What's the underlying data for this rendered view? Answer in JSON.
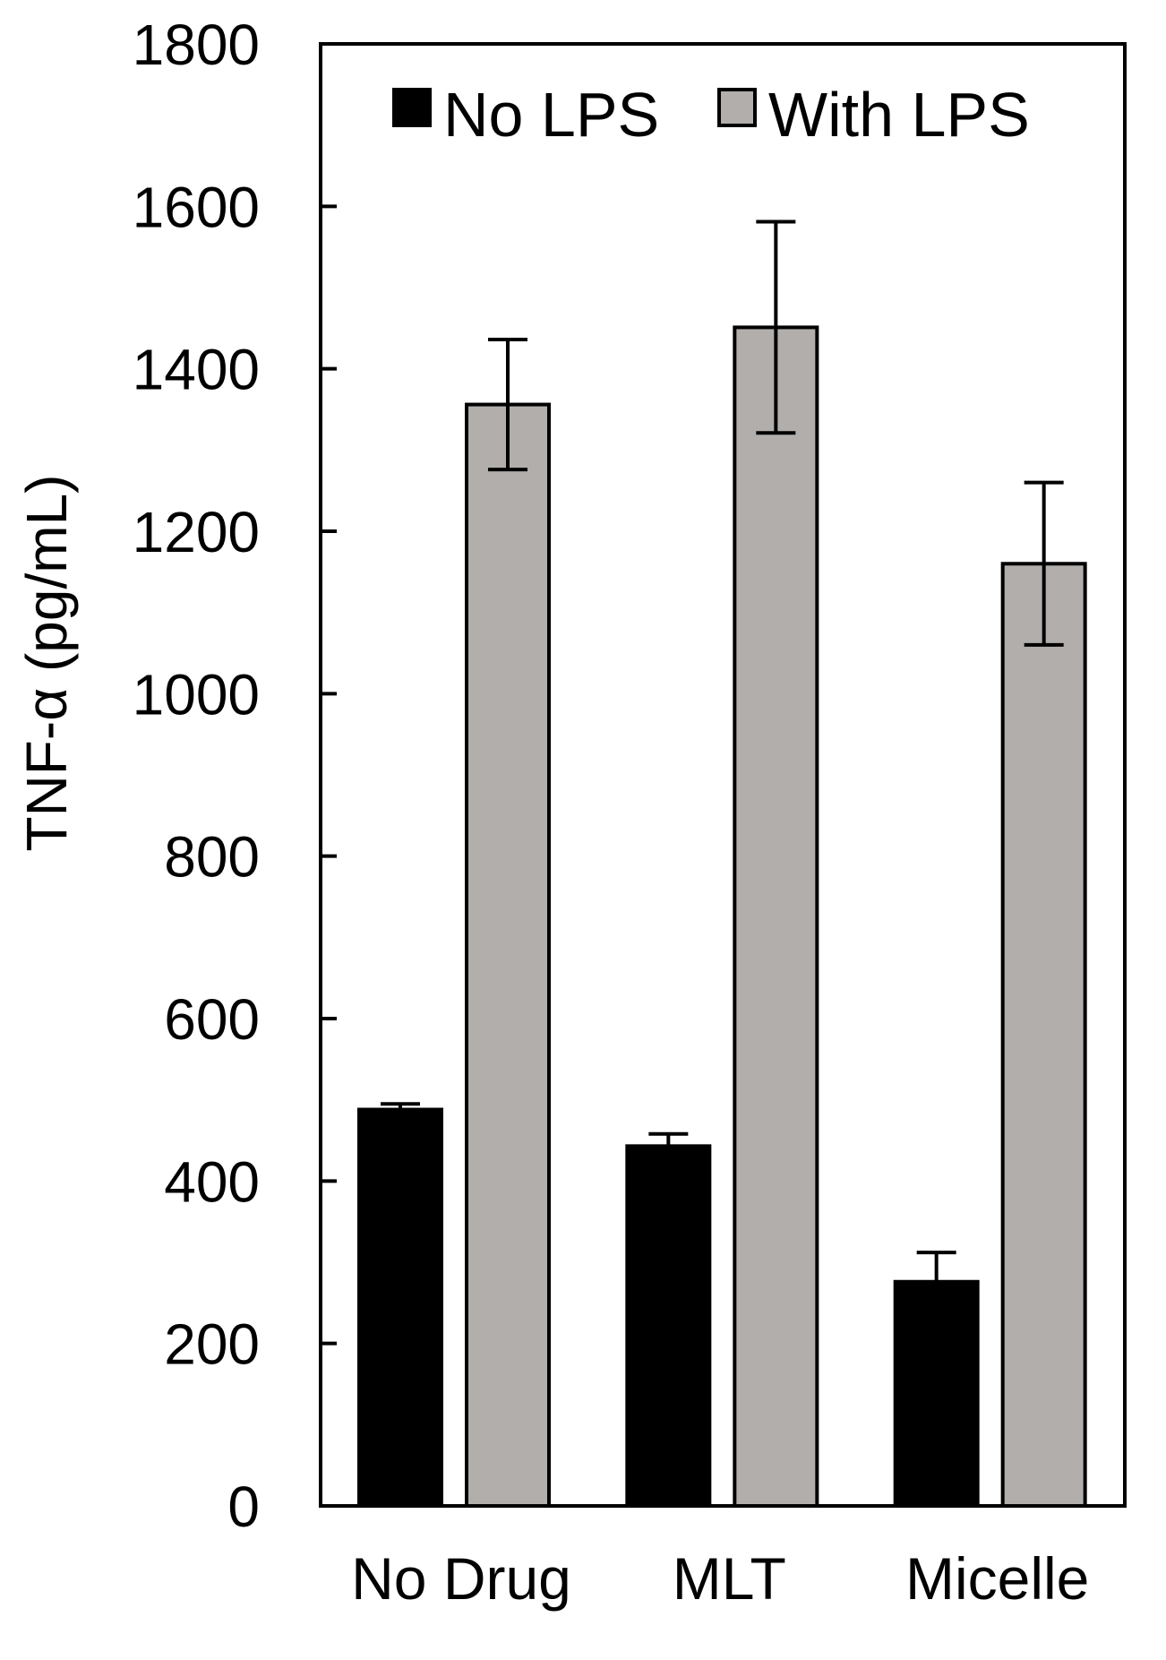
{
  "chart_data": {
    "type": "bar",
    "title": "",
    "xlabel": "",
    "ylabel": "TNF-α (pg/mL)",
    "ylim": [
      0,
      1800
    ],
    "yticks": [
      "0",
      "200",
      "400",
      "600",
      "800",
      "1000",
      "1200",
      "1400",
      "1600",
      "1800"
    ],
    "categories": [
      "No Drug",
      "MLT",
      "Micelle"
    ],
    "legend": {
      "position": "top"
    },
    "grid": false,
    "series": [
      {
        "name": "No LPS",
        "color": "#000000",
        "values": [
          488,
          443,
          276
        ],
        "errors": [
          7,
          15,
          36
        ]
      },
      {
        "name": "With LPS",
        "color": "#b1aeac",
        "values": [
          1356,
          1451,
          1160
        ],
        "errors": [
          80,
          130,
          100
        ]
      }
    ]
  }
}
